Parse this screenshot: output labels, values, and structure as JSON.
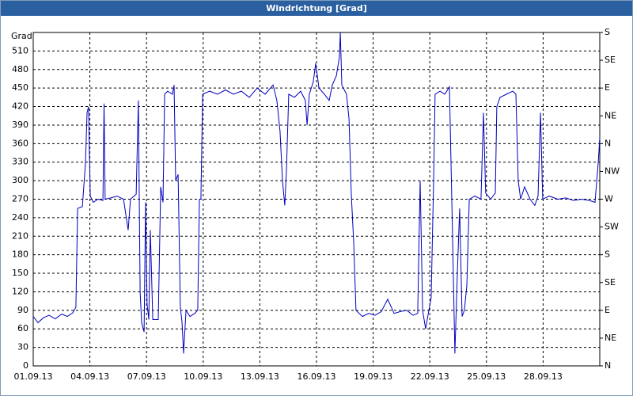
{
  "chart_data": {
    "type": "line",
    "title": "Windrichtung [Grad]",
    "y_label": "Grad",
    "x": [
      0,
      0.25,
      0.54,
      0.84,
      1.17,
      1.51,
      1.8,
      2.09,
      2.26,
      2.35,
      2.6,
      2.77,
      2.85,
      2.93,
      3.02,
      3.18,
      3.44,
      3.69,
      3.75,
      3.81,
      4.11,
      4.44,
      4.78,
      5.03,
      5.15,
      5.45,
      5.57,
      5.66,
      5.74,
      5.87,
      5.95,
      6.03,
      6.12,
      6.2,
      6.33,
      6.62,
      6.75,
      6.87,
      6.96,
      7.12,
      7.37,
      7.46,
      7.54,
      7.67,
      7.79,
      7.88,
      7.96,
      8.09,
      8.3,
      8.55,
      8.71,
      8.8,
      8.88,
      8.97,
      9.34,
      9.76,
      10.18,
      10.6,
      11.02,
      11.44,
      11.86,
      12.28,
      12.7,
      12.9,
      13.07,
      13.2,
      13.32,
      13.41,
      13.53,
      13.83,
      14.16,
      14.41,
      14.5,
      14.62,
      14.83,
      14.96,
      15.13,
      15.42,
      15.67,
      15.84,
      16.05,
      16.21,
      16.26,
      16.34,
      16.59,
      16.72,
      16.84,
      16.97,
      17.09,
      17.43,
      17.76,
      18.1,
      18.43,
      18.77,
      19.11,
      19.44,
      19.78,
      20.11,
      20.36,
      20.49,
      20.62,
      20.78,
      20.95,
      21.07,
      21.2,
      21.28,
      21.54,
      21.79,
      22.04,
      22.21,
      22.33,
      22.46,
      22.58,
      22.71,
      22.83,
      22.96,
      23.09,
      23.38,
      23.71,
      23.84,
      23.96,
      24.22,
      24.47,
      24.55,
      24.72,
      25.05,
      25.39,
      25.56,
      25.68,
      25.81,
      26.02,
      26.31,
      26.56,
      26.73,
      26.86,
      26.98,
      27.32,
      27.78,
      28.2,
      28.62,
      29.03,
      29.45,
      29.75,
      29.92,
      30.0
    ],
    "series": [
      {
        "name": "Windrichtung",
        "color": "#0000c0",
        "values": [
          80,
          70,
          78,
          82,
          76,
          84,
          80,
          86,
          95,
          255,
          258,
          330,
          410,
          420,
          275,
          265,
          270,
          268,
          425,
          270,
          272,
          275,
          270,
          220,
          270,
          278,
          430,
          120,
          70,
          55,
          265,
          100,
          75,
          220,
          75,
          75,
          290,
          265,
          440,
          445,
          440,
          455,
          300,
          310,
          95,
          70,
          20,
          90,
          80,
          85,
          90,
          270,
          270,
          440,
          445,
          440,
          447,
          440,
          445,
          435,
          450,
          440,
          455,
          430,
          380,
          300,
          260,
          320,
          440,
          435,
          445,
          430,
          390,
          440,
          460,
          490,
          450,
          440,
          430,
          455,
          470,
          500,
          540,
          455,
          440,
          400,
          280,
          200,
          90,
          80,
          85,
          82,
          88,
          108,
          85,
          88,
          90,
          82,
          85,
          300,
          90,
          60,
          90,
          110,
          300,
          440,
          445,
          440,
          452,
          200,
          20,
          150,
          255,
          80,
          90,
          130,
          270,
          275,
          270,
          410,
          280,
          270,
          280,
          420,
          435,
          440,
          445,
          440,
          300,
          270,
          290,
          270,
          260,
          275,
          410,
          270,
          275,
          270,
          272,
          268,
          270,
          268,
          265,
          330,
          370
        ]
      }
    ],
    "xlim": [
      0,
      30
    ],
    "xticks": [
      {
        "value": 0,
        "label": "01.09.13"
      },
      {
        "value": 3,
        "label": "04.09.13"
      },
      {
        "value": 6,
        "label": "07.09.13"
      },
      {
        "value": 9,
        "label": "10.09.13"
      },
      {
        "value": 12,
        "label": "13.09.13"
      },
      {
        "value": 15,
        "label": "16.09.13"
      },
      {
        "value": 18,
        "label": "19.09.13"
      },
      {
        "value": 21,
        "label": "22.09.13"
      },
      {
        "value": 24,
        "label": "25.09.13"
      },
      {
        "value": 27,
        "label": "28.09.13"
      }
    ],
    "ylim": [
      0,
      540
    ],
    "yticks": [
      0,
      30,
      60,
      90,
      120,
      150,
      180,
      210,
      240,
      270,
      300,
      330,
      360,
      390,
      420,
      450,
      480,
      510
    ],
    "y2lim": [
      0,
      540
    ],
    "y2ticks": [
      {
        "value": 0,
        "label": "N"
      },
      {
        "value": 45,
        "label": "NE"
      },
      {
        "value": 90,
        "label": "E"
      },
      {
        "value": 135,
        "label": "SE"
      },
      {
        "value": 180,
        "label": "S"
      },
      {
        "value": 225,
        "label": "SW"
      },
      {
        "value": 270,
        "label": "W"
      },
      {
        "value": 315,
        "label": "NW"
      },
      {
        "value": 360,
        "label": "N"
      },
      {
        "value": 405,
        "label": "NE"
      },
      {
        "value": 450,
        "label": "E"
      },
      {
        "value": 495,
        "label": "SE"
      },
      {
        "value": 540,
        "label": "S"
      }
    ],
    "grid": true
  }
}
